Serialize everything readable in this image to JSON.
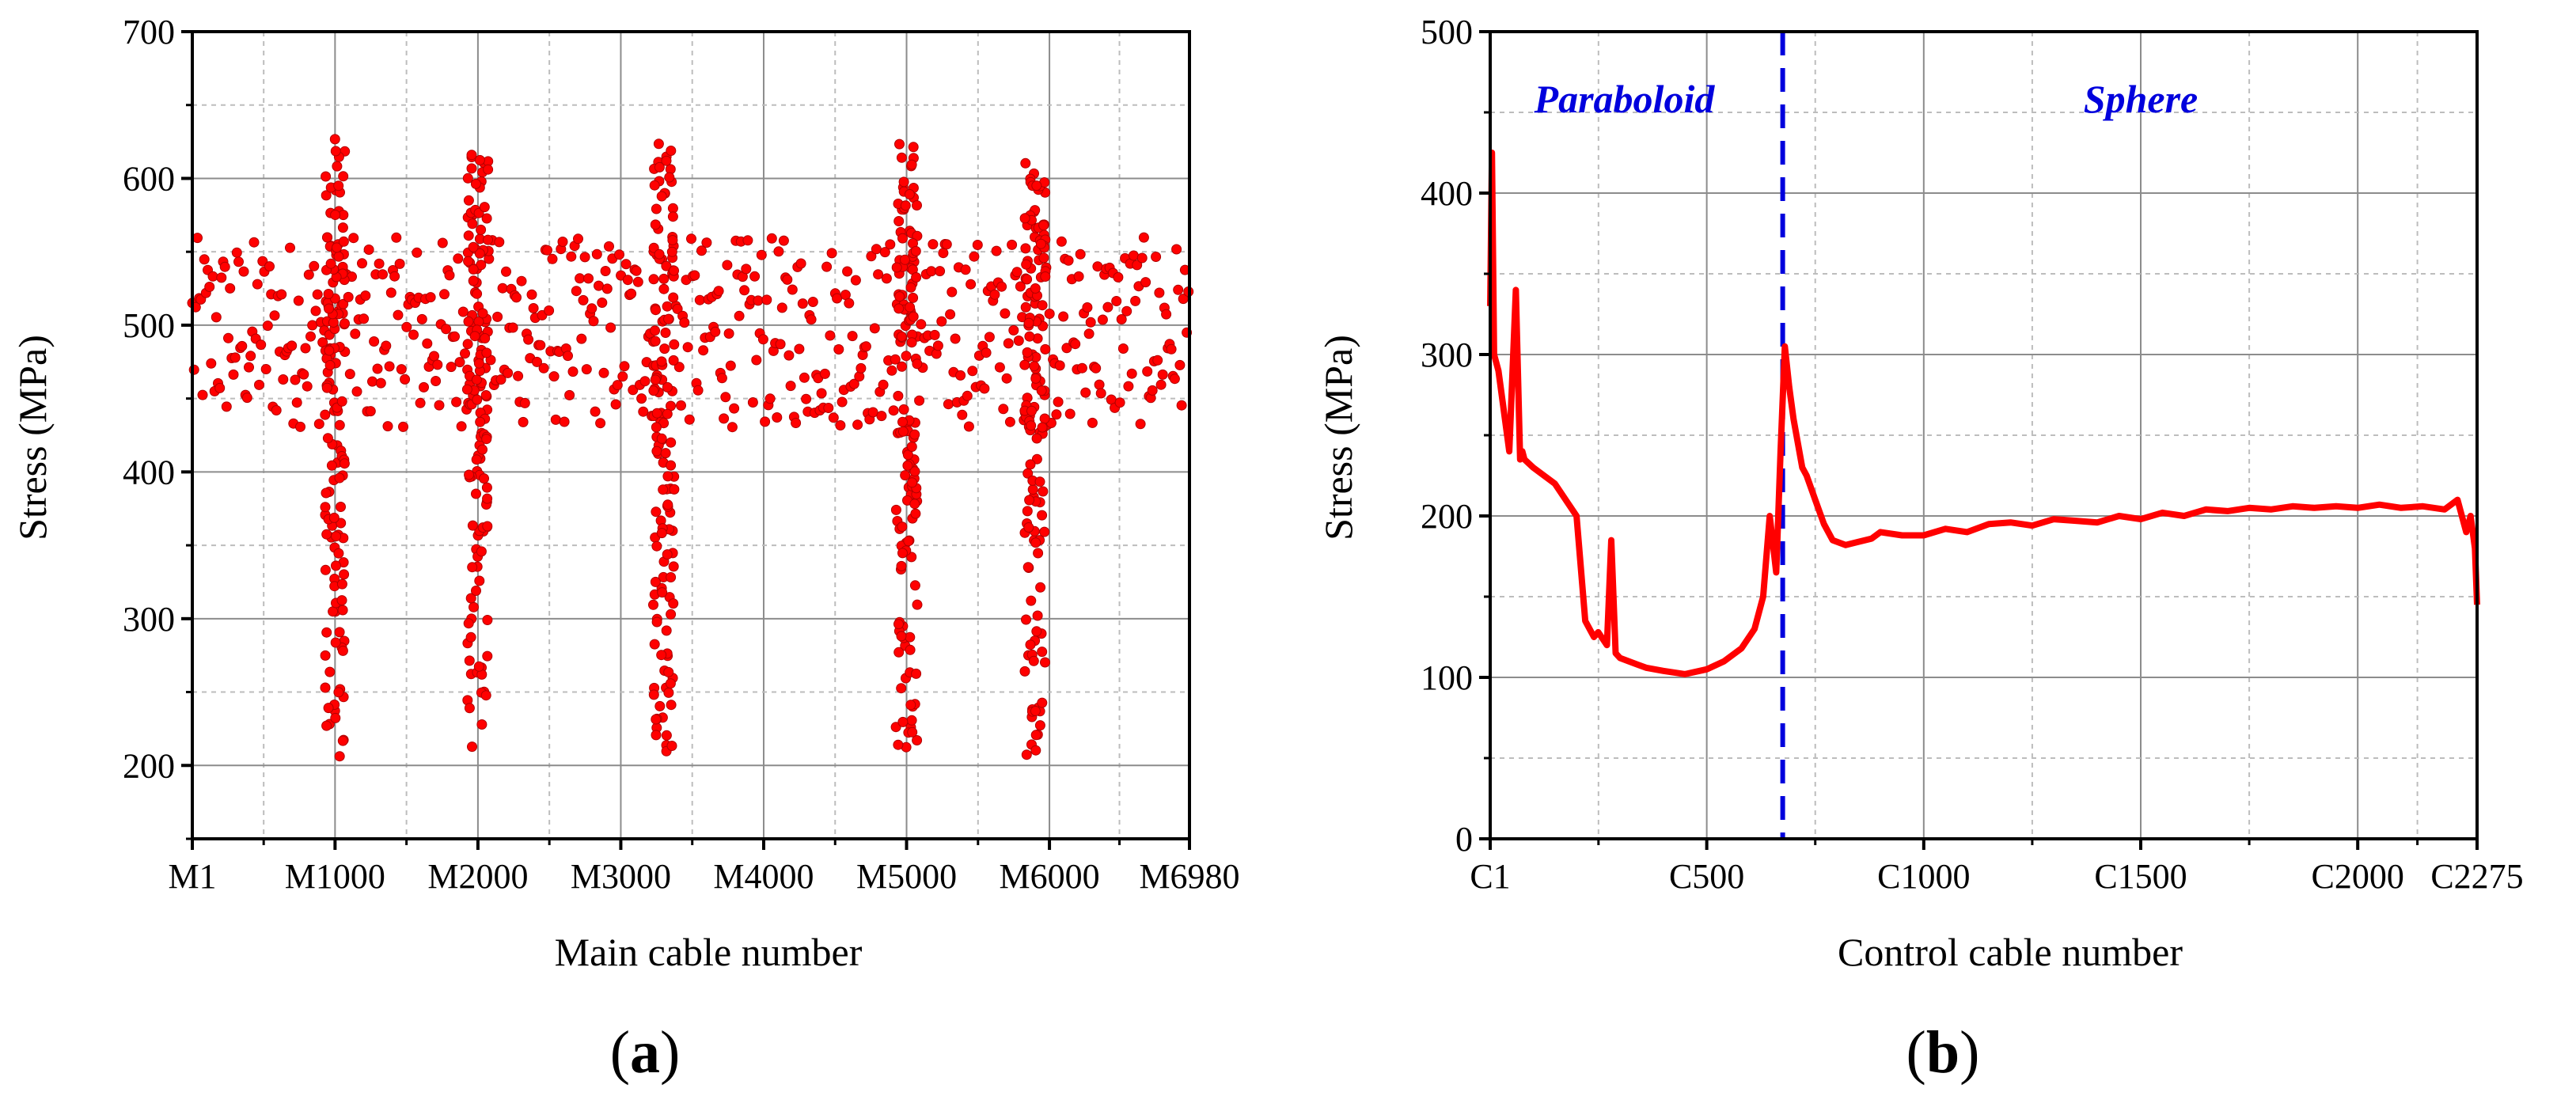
{
  "colors": {
    "data": "#ff0000",
    "divider": "#0000dd",
    "grid_major": "#8c8c8c",
    "grid_minor": "#bdbdbd",
    "axis": "#000000"
  },
  "chart_data": [
    {
      "type": "scatter",
      "panel_label": {
        "open": "(",
        "letter": "a",
        "close": ")"
      },
      "xlabel": "Main cable number",
      "ylabel": "Stress (MPa)",
      "xlim": [
        1,
        6980
      ],
      "ylim": [
        150,
        700
      ],
      "xticks": [
        {
          "x": 1,
          "label": "M1"
        },
        {
          "x": 1000,
          "label": "M1000"
        },
        {
          "x": 2000,
          "label": "M2000"
        },
        {
          "x": 3000,
          "label": "M3000"
        },
        {
          "x": 4000,
          "label": "M4000"
        },
        {
          "x": 5000,
          "label": "M5000"
        },
        {
          "x": 6000,
          "label": "M6000"
        },
        {
          "x": 6980,
          "label": "M6980"
        }
      ],
      "yticks": [
        200,
        300,
        400,
        500,
        600,
        700
      ],
      "grid": true,
      "band": {
        "low": 430,
        "high": 560,
        "point_step": 12
      },
      "dips": [
        {
          "x": 1000,
          "low": 205,
          "high": 630,
          "spread": 140
        },
        {
          "x": 2000,
          "low": 210,
          "high": 625,
          "spread": 150
        },
        {
          "x": 3300,
          "low": 205,
          "high": 625,
          "spread": 150
        },
        {
          "x": 5000,
          "low": 210,
          "high": 625,
          "spread": 150
        },
        {
          "x": 5900,
          "low": 205,
          "high": 615,
          "spread": 150
        }
      ]
    },
    {
      "type": "line",
      "panel_label": {
        "open": "(",
        "letter": "b",
        "close": ")"
      },
      "xlabel": "Control cable number",
      "ylabel": "Stress (MPa)",
      "xlim": [
        1,
        2275
      ],
      "ylim": [
        0,
        500
      ],
      "xticks": [
        {
          "x": 1,
          "label": "C1"
        },
        {
          "x": 500,
          "label": "C500"
        },
        {
          "x": 1000,
          "label": "C1000"
        },
        {
          "x": 1500,
          "label": "C1500"
        },
        {
          "x": 2000,
          "label": "C2000"
        },
        {
          "x": 2275,
          "label": "C2275"
        }
      ],
      "yticks": [
        0,
        100,
        200,
        300,
        400,
        500
      ],
      "grid": true,
      "divider_x": 675,
      "annotations": [
        {
          "text": "Paraboloid",
          "x": 310,
          "y": 450,
          "color": "#0000dd"
        },
        {
          "text": "Sphere",
          "x": 1500,
          "y": 450,
          "color": "#0000dd"
        }
      ],
      "series": [
        {
          "x": [
            1,
            5,
            10,
            20,
            30,
            45,
            60,
            70,
            75,
            80,
            100,
            150,
            200,
            220,
            230,
            240,
            250,
            270,
            280,
            290,
            300,
            320,
            340,
            360,
            400,
            450,
            500,
            540,
            580,
            610,
            630,
            645,
            660,
            670,
            680,
            690,
            700,
            710,
            720,
            730,
            750,
            770,
            790,
            820,
            850,
            880,
            900,
            950,
            1000,
            1050,
            1100,
            1150,
            1200,
            1250,
            1300,
            1350,
            1400,
            1450,
            1500,
            1550,
            1600,
            1650,
            1700,
            1750,
            1800,
            1850,
            1900,
            1950,
            2000,
            2050,
            2100,
            2150,
            2200,
            2230,
            2250,
            2260,
            2270,
            2275
          ],
          "y": [
            330,
            425,
            300,
            290,
            270,
            240,
            340,
            235,
            240,
            235,
            230,
            220,
            200,
            135,
            130,
            125,
            128,
            120,
            185,
            115,
            112,
            110,
            108,
            106,
            104,
            102,
            105,
            110,
            118,
            130,
            150,
            200,
            165,
            240,
            305,
            280,
            260,
            245,
            230,
            225,
            210,
            195,
            185,
            182,
            184,
            186,
            190,
            188,
            188,
            192,
            190,
            195,
            196,
            194,
            198,
            197,
            196,
            200,
            198,
            202,
            200,
            204,
            203,
            205,
            204,
            206,
            205,
            206,
            205,
            207,
            205,
            206,
            204,
            210,
            190,
            200,
            180,
            145
          ]
        }
      ]
    }
  ]
}
